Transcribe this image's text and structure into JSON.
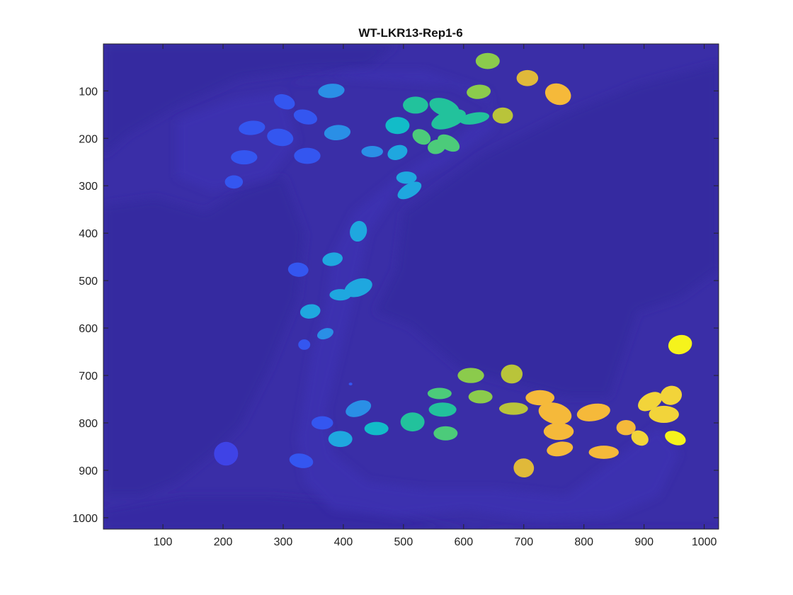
{
  "figure": {
    "title": "WT-LKR13-Rep1-6"
  },
  "axes": {
    "x_ticks": [
      100,
      200,
      300,
      400,
      500,
      600,
      700,
      800,
      900,
      1000
    ],
    "y_ticks": [
      100,
      200,
      300,
      400,
      500,
      600,
      700,
      800,
      900,
      1000
    ],
    "x_range": [
      1,
      1024
    ],
    "y_range": [
      1,
      1024
    ],
    "y_reversed": true
  },
  "colors": {
    "background": "#3a2ea7",
    "background_dark": "#342a9c",
    "blob_palette": [
      "#3f43e6",
      "#3456f0",
      "#2a8fe6",
      "#1fa7df",
      "#12bcc8",
      "#22c29c",
      "#4ccb7a",
      "#8bcb4c",
      "#b9c43a",
      "#e0b93a",
      "#f5b93a",
      "#f2d43a",
      "#f5f31c"
    ]
  }
}
